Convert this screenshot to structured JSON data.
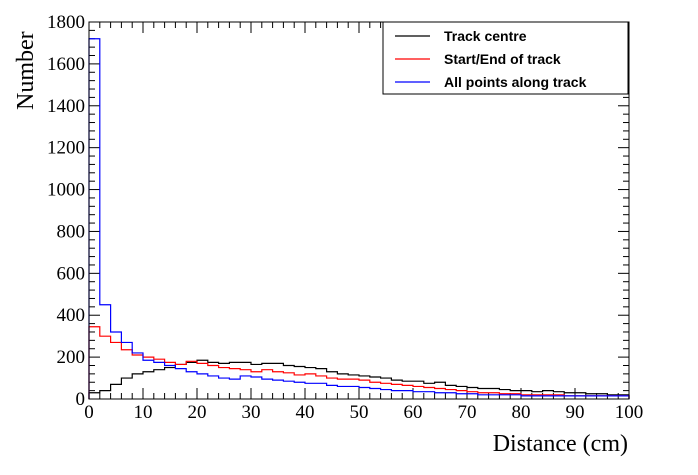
{
  "chart_data": {
    "type": "line",
    "style": "step-histogram",
    "xlabel": "Distance (cm)",
    "ylabel": "Number",
    "xlim": [
      0,
      100
    ],
    "ylim": [
      0,
      1800
    ],
    "x_ticks": [
      0,
      10,
      20,
      30,
      40,
      50,
      60,
      70,
      80,
      90,
      100
    ],
    "y_ticks": [
      0,
      200,
      400,
      600,
      800,
      1000,
      1200,
      1400,
      1600,
      1800
    ],
    "grid": false,
    "legend_position": "top-right",
    "bin_width": 2,
    "series": [
      {
        "name": "Track centre",
        "color": "#000000",
        "values": [
          30,
          40,
          70,
          100,
          120,
          130,
          140,
          150,
          165,
          175,
          185,
          175,
          170,
          175,
          175,
          165,
          170,
          170,
          160,
          155,
          150,
          145,
          130,
          120,
          115,
          110,
          105,
          100,
          90,
          85,
          85,
          75,
          80,
          65,
          60,
          55,
          50,
          50,
          45,
          40,
          40,
          35,
          40,
          35,
          30,
          30,
          25,
          25,
          20,
          20
        ]
      },
      {
        "name": "Start/End of track",
        "color": "#ff0000",
        "values": [
          345,
          300,
          270,
          235,
          210,
          200,
          190,
          175,
          165,
          180,
          170,
          160,
          150,
          145,
          140,
          130,
          140,
          130,
          125,
          115,
          120,
          110,
          100,
          95,
          95,
          90,
          80,
          75,
          70,
          65,
          60,
          55,
          50,
          45,
          40,
          35,
          30,
          30,
          25,
          25,
          20,
          20,
          20,
          20,
          15,
          15,
          15,
          15,
          15,
          15
        ]
      },
      {
        "name": "All points along track",
        "color": "#0000ff",
        "values": [
          1720,
          450,
          320,
          270,
          220,
          185,
          175,
          160,
          145,
          130,
          120,
          110,
          100,
          95,
          110,
          105,
          95,
          90,
          85,
          80,
          75,
          75,
          65,
          60,
          60,
          55,
          50,
          45,
          40,
          40,
          35,
          35,
          30,
          30,
          25,
          25,
          20,
          20,
          20,
          20,
          15,
          15,
          15,
          15,
          15,
          15,
          15,
          15,
          15,
          15
        ]
      }
    ]
  }
}
